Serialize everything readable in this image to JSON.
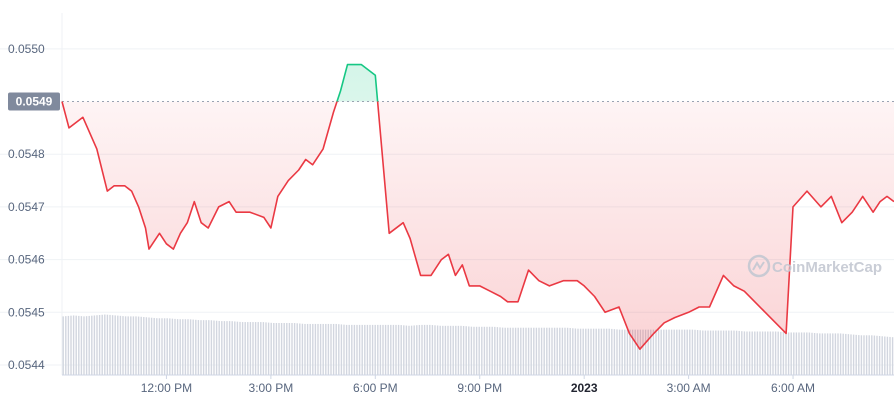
{
  "chart_data": {
    "type": "line",
    "x_tick_labels": [
      "12:00 PM",
      "3:00 PM",
      "6:00 PM",
      "9:00 PM",
      "2023",
      "3:00 AM",
      "6:00 AM"
    ],
    "x_tick_hours": [
      12,
      15,
      18,
      21,
      24,
      27,
      30
    ],
    "x_tick_bold": [
      false,
      false,
      false,
      false,
      true,
      false,
      false
    ],
    "x_range_hours": [
      9.0,
      32.9
    ],
    "y_tick_labels": [
      "0.0550",
      "0.0548",
      "0.0547",
      "0.0546",
      "0.0545",
      "0.0544"
    ],
    "y_tick_values": [
      0.055,
      0.0548,
      0.0547,
      0.0546,
      0.0545,
      0.0544
    ],
    "y_range": [
      0.054381,
      0.055068
    ],
    "reference_value": 0.0549,
    "reference_label": "0.0549",
    "grid": "horizontal",
    "watermark": "CoinMarketCap",
    "colors": {
      "up": "#16c784",
      "down": "#ea3943",
      "badge": "#808a9d",
      "volume": "#d2d6df",
      "grid": "#eff2f5"
    },
    "price": {
      "x_hours": [
        9.0,
        9.2,
        9.6,
        10.0,
        10.3,
        10.5,
        10.8,
        11.0,
        11.2,
        11.4,
        11.5,
        11.8,
        12.0,
        12.2,
        12.4,
        12.6,
        12.8,
        13.0,
        13.2,
        13.5,
        13.8,
        14.0,
        14.4,
        14.8,
        15.0,
        15.2,
        15.5,
        15.8,
        16.0,
        16.2,
        16.5,
        16.8,
        17.0,
        17.2,
        17.6,
        18.0,
        18.4,
        18.8,
        19.0,
        19.3,
        19.6,
        19.9,
        20.1,
        20.3,
        20.5,
        20.7,
        21.0,
        21.3,
        21.6,
        21.8,
        22.1,
        22.4,
        22.7,
        23.0,
        23.4,
        23.8,
        24.0,
        24.3,
        24.6,
        25.0,
        25.3,
        25.6,
        26.0,
        26.3,
        26.6,
        27.0,
        27.3,
        27.6,
        28.0,
        28.3,
        28.6,
        28.9,
        29.2,
        29.5,
        29.8,
        30.0,
        30.4,
        30.8,
        31.1,
        31.4,
        31.7,
        32.0,
        32.3,
        32.5,
        32.7,
        32.9
      ],
      "values": [
        0.0549,
        0.05485,
        0.05487,
        0.05481,
        0.05473,
        0.05474,
        0.05474,
        0.05473,
        0.0547,
        0.05466,
        0.05462,
        0.05465,
        0.05463,
        0.05462,
        0.05465,
        0.05467,
        0.05471,
        0.05467,
        0.05466,
        0.0547,
        0.05471,
        0.05469,
        0.05469,
        0.05468,
        0.05466,
        0.05472,
        0.05475,
        0.05477,
        0.05479,
        0.05478,
        0.05481,
        0.05488,
        0.05492,
        0.05497,
        0.05497,
        0.05495,
        0.05465,
        0.05467,
        0.05464,
        0.05457,
        0.05457,
        0.0546,
        0.05461,
        0.05457,
        0.05459,
        0.05455,
        0.05455,
        0.05454,
        0.05453,
        0.05452,
        0.05452,
        0.05458,
        0.05456,
        0.05455,
        0.05456,
        0.05456,
        0.05455,
        0.05453,
        0.0545,
        0.05451,
        0.05446,
        0.05443,
        0.05446,
        0.05448,
        0.05449,
        0.0545,
        0.05451,
        0.05451,
        0.05457,
        0.05455,
        0.05454,
        0.05452,
        0.0545,
        0.05448,
        0.05446,
        0.0547,
        0.05473,
        0.0547,
        0.05472,
        0.05467,
        0.05469,
        0.05472,
        0.05469,
        0.05471,
        0.05472,
        0.05471
      ]
    },
    "volume": {
      "description_free_levels_0_to_1": [
        0.62,
        0.63,
        0.62,
        0.63,
        0.64,
        0.63,
        0.62,
        0.62,
        0.61,
        0.6,
        0.6,
        0.59,
        0.59,
        0.58,
        0.58,
        0.57,
        0.57,
        0.56,
        0.56,
        0.56,
        0.55,
        0.55,
        0.55,
        0.54,
        0.54,
        0.54,
        0.54,
        0.53,
        0.53,
        0.53,
        0.53,
        0.53,
        0.53,
        0.52,
        0.53,
        0.53,
        0.52,
        0.52,
        0.52,
        0.51,
        0.51,
        0.51,
        0.5,
        0.5,
        0.5,
        0.5,
        0.5,
        0.5,
        0.5,
        0.49,
        0.49,
        0.49,
        0.49,
        0.48,
        0.48,
        0.48,
        0.48,
        0.48,
        0.48,
        0.48,
        0.48,
        0.47,
        0.47,
        0.47,
        0.47,
        0.46,
        0.46,
        0.46,
        0.46,
        0.45,
        0.45,
        0.45,
        0.44,
        0.44,
        0.44,
        0.43,
        0.42,
        0.42,
        0.41,
        0.4
      ]
    }
  }
}
